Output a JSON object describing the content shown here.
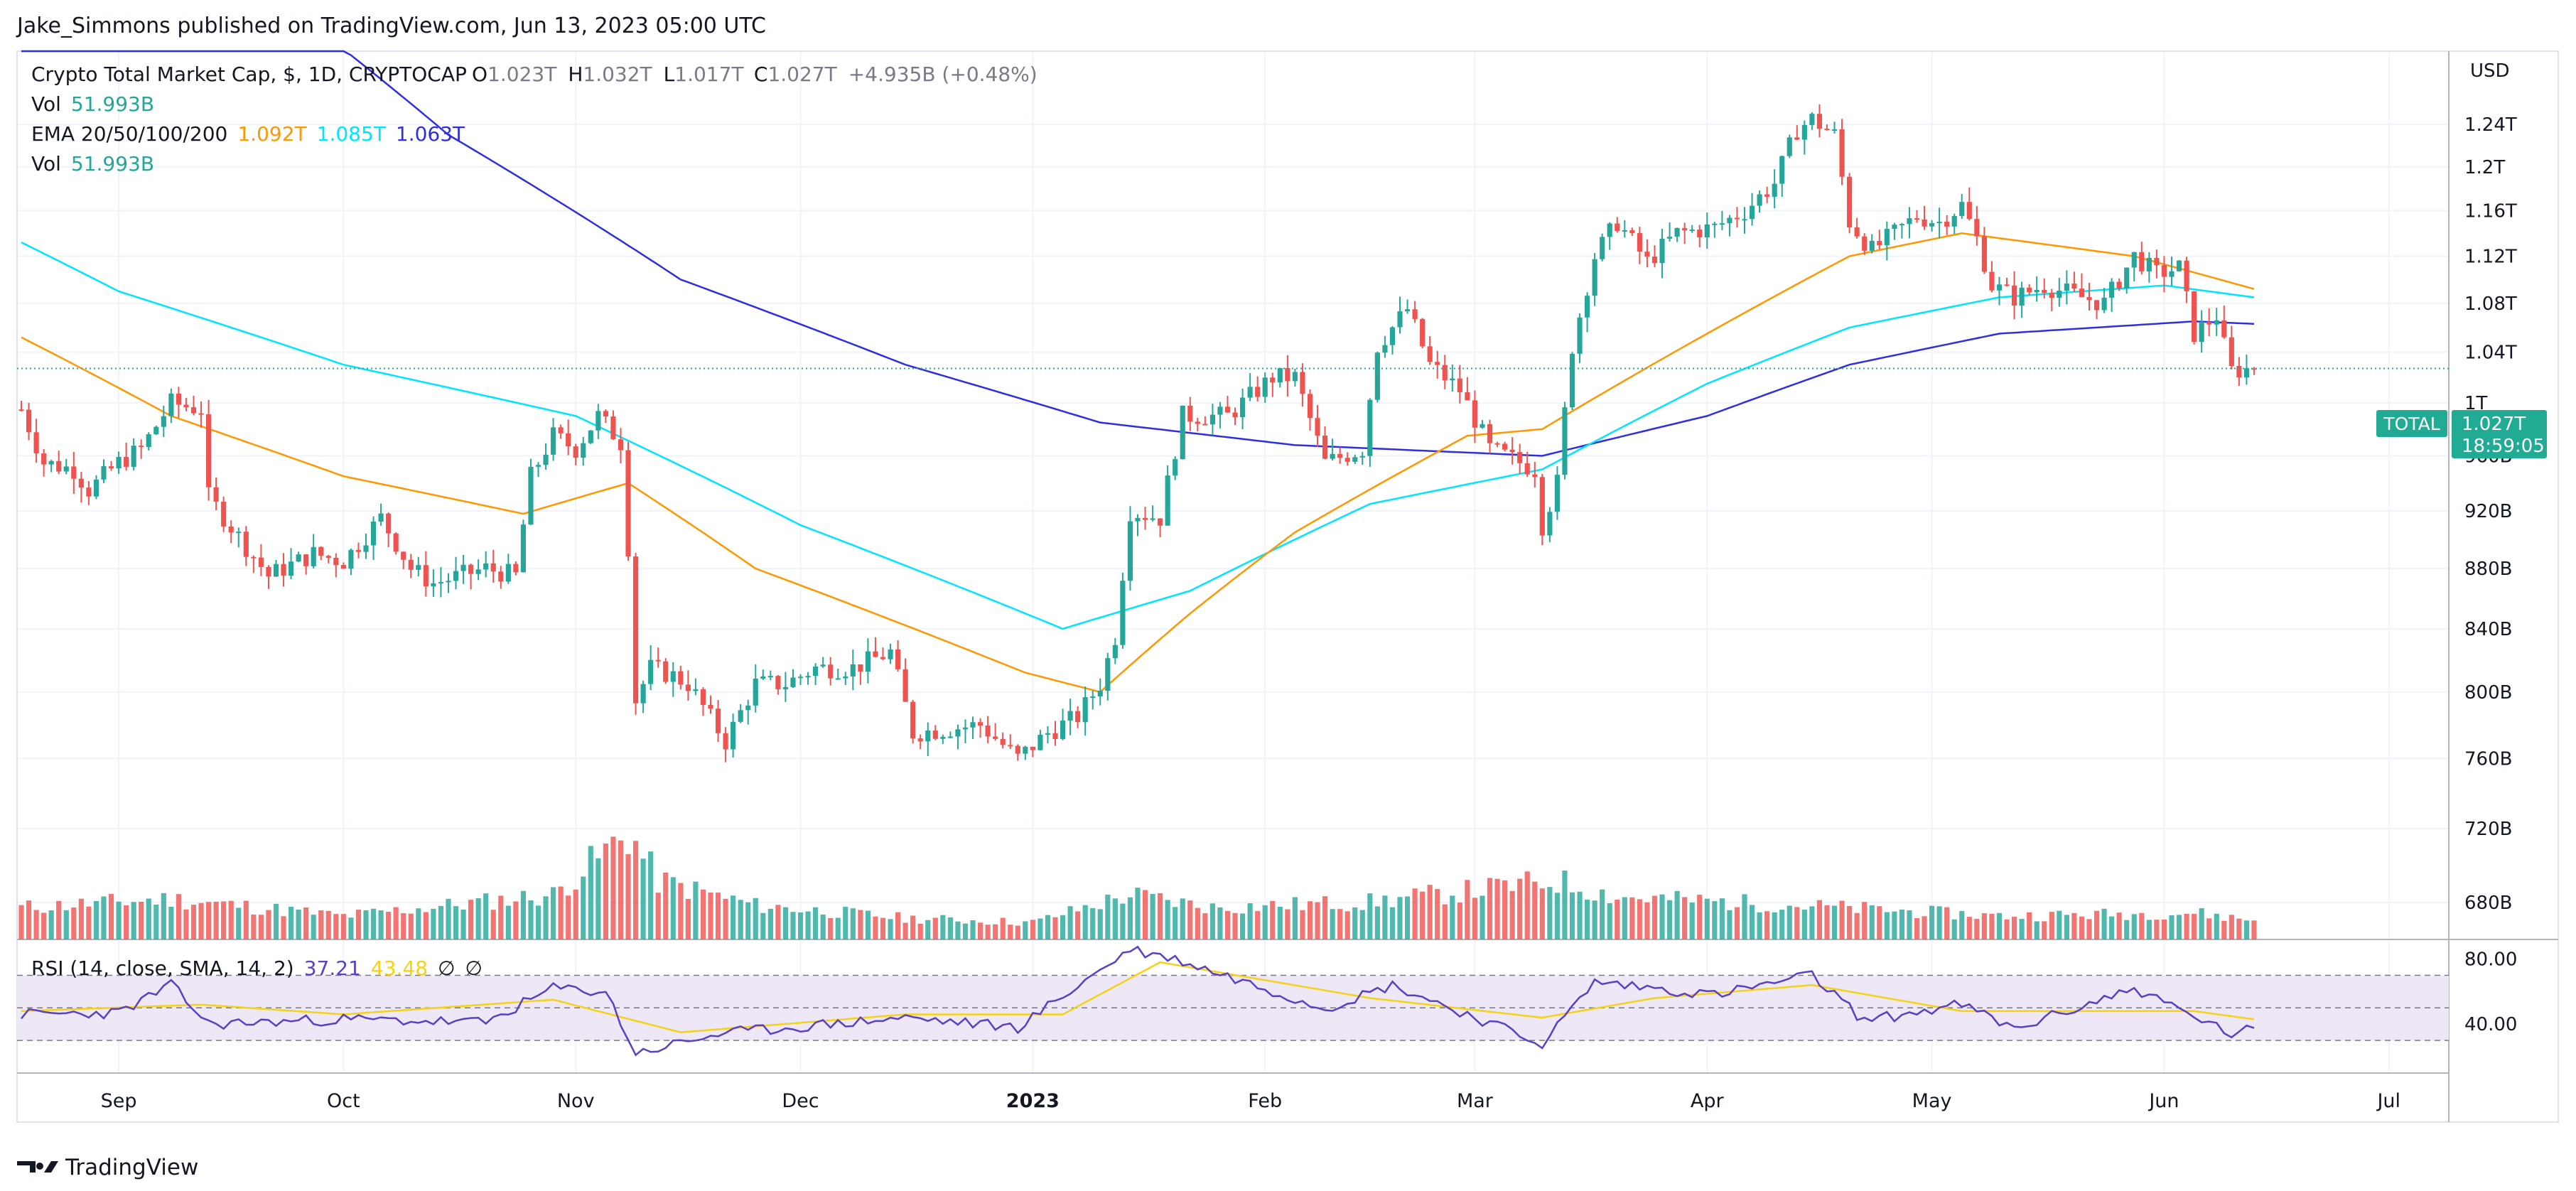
{
  "header": {
    "publisher": "Jake_Simmons published on TradingView.com, Jun 13, 2023 05:00 UTC"
  },
  "footer": {
    "logo_text": "TradingView"
  },
  "legend": {
    "symbol": "Crypto Total Market Cap, $, 1D, CRYPTOCAP",
    "ohlc": [
      {
        "label": "O",
        "value": "1.023T"
      },
      {
        "label": "H",
        "value": "1.032T"
      },
      {
        "label": "L",
        "value": "1.017T"
      },
      {
        "label": "C",
        "value": "1.027T"
      }
    ],
    "change": "+4.935B (+0.48%)",
    "vol_label": "Vol",
    "vol_value": "51.993B",
    "ema_label": "EMA 20/50/100/200",
    "ema_values": [
      "1.092T",
      "1.085T",
      "1.063T"
    ],
    "vol2_label": "Vol",
    "vol2_value": "51.993B",
    "rsi_label": "RSI (14, close, SMA, 14, 2)",
    "rsi_value": "37.21",
    "rsi_sma": "43.48",
    "rsi_na1": "∅",
    "rsi_na2": "∅"
  },
  "price_tag": {
    "symbol": "TOTAL",
    "value": "1.027T",
    "countdown": "18:59:05"
  },
  "colors": {
    "up": "#26a69a",
    "down": "#ef5350",
    "ema50": "#ff9800",
    "ema100": "#00e5ff",
    "ema200": "#2f2fe0",
    "rsi": "#5b3fc4",
    "rsi_sma": "#f5d215",
    "rsi_band": "#ede7f6",
    "tag_bg": "#22ab94"
  },
  "chart_data": [
    {
      "type": "candlestick",
      "title": "Crypto Total Market Cap, $, 1D, CRYPTOCAP",
      "ylabel": "USD",
      "y_scale": "log",
      "y_ticks": [
        "680B",
        "720B",
        "760B",
        "800B",
        "840B",
        "880B",
        "920B",
        "960B",
        "1T",
        "1.04T",
        "1.08T",
        "1.12T",
        "1.16T",
        "1.2T",
        "1.24T"
      ],
      "x_ticks": [
        "Sep",
        "Oct",
        "Nov",
        "Dec",
        "2023",
        "Feb",
        "Mar",
        "Apr",
        "May",
        "Jun",
        "Jul"
      ],
      "x_range": [
        "2022-08-19",
        "2023-07-07"
      ],
      "last_close": "1.027T",
      "grid": true,
      "anchors": [
        [
          "2022-08-19",
          995
        ],
        [
          "2022-08-22",
          955
        ],
        [
          "2022-08-26",
          950
        ],
        [
          "2022-08-28",
          935
        ],
        [
          "2022-09-01",
          955
        ],
        [
          "2022-09-04",
          965
        ],
        [
          "2022-09-08",
          1000
        ],
        [
          "2022-09-12",
          995
        ],
        [
          "2022-09-13",
          930
        ],
        [
          "2022-09-18",
          895
        ],
        [
          "2022-09-21",
          875
        ],
        [
          "2022-09-27",
          890
        ],
        [
          "2022-10-01",
          885
        ],
        [
          "2022-10-06",
          915
        ],
        [
          "2022-10-10",
          880
        ],
        [
          "2022-10-13",
          870
        ],
        [
          "2022-10-20",
          880
        ],
        [
          "2022-10-24",
          875
        ],
        [
          "2022-10-26",
          945
        ],
        [
          "2022-10-29",
          975
        ],
        [
          "2022-11-01",
          965
        ],
        [
          "2022-11-04",
          990
        ],
        [
          "2022-11-07",
          970
        ],
        [
          "2022-11-08",
          895
        ],
        [
          "2022-11-09",
          795
        ],
        [
          "2022-11-11",
          815
        ],
        [
          "2022-11-14",
          810
        ],
        [
          "2022-11-16",
          805
        ],
        [
          "2022-11-21",
          770
        ],
        [
          "2022-11-25",
          805
        ],
        [
          "2022-11-29",
          805
        ],
        [
          "2022-12-03",
          815
        ],
        [
          "2022-12-08",
          815
        ],
        [
          "2022-12-13",
          825
        ],
        [
          "2022-12-16",
          775
        ],
        [
          "2022-12-25",
          780
        ],
        [
          "2022-12-30",
          760
        ],
        [
          "2023-01-03",
          775
        ],
        [
          "2023-01-07",
          785
        ],
        [
          "2023-01-10",
          805
        ],
        [
          "2023-01-12",
          835
        ],
        [
          "2023-01-14",
          920
        ],
        [
          "2023-01-18",
          915
        ],
        [
          "2023-01-21",
          990
        ],
        [
          "2023-01-27",
          990
        ],
        [
          "2023-02-02",
          1020
        ],
        [
          "2023-02-05",
          1020
        ],
        [
          "2023-02-09",
          955
        ],
        [
          "2023-02-14",
          965
        ],
        [
          "2023-02-16",
          1045
        ],
        [
          "2023-02-20",
          1075
        ],
        [
          "2023-02-23",
          1030
        ],
        [
          "2023-02-27",
          1010
        ],
        [
          "2023-03-03",
          965
        ],
        [
          "2023-03-09",
          950
        ],
        [
          "2023-03-10",
          910
        ],
        [
          "2023-03-12",
          940
        ],
        [
          "2023-03-14",
          1045
        ],
        [
          "2023-03-17",
          1120
        ],
        [
          "2023-03-20",
          1150
        ],
        [
          "2023-03-24",
          1115
        ],
        [
          "2023-03-28",
          1140
        ],
        [
          "2023-04-02",
          1145
        ],
        [
          "2023-04-06",
          1160
        ],
        [
          "2023-04-10",
          1185
        ],
        [
          "2023-04-13",
          1235
        ],
        [
          "2023-04-15",
          1245
        ],
        [
          "2023-04-18",
          1230
        ],
        [
          "2023-04-20",
          1150
        ],
        [
          "2023-04-23",
          1125
        ],
        [
          "2023-04-26",
          1140
        ],
        [
          "2023-04-29",
          1155
        ],
        [
          "2023-05-02",
          1150
        ],
        [
          "2023-05-05",
          1165
        ],
        [
          "2023-05-07",
          1135
        ],
        [
          "2023-05-09",
          1095
        ],
        [
          "2023-05-12",
          1085
        ],
        [
          "2023-05-16",
          1095
        ],
        [
          "2023-05-21",
          1085
        ],
        [
          "2023-05-24",
          1080
        ],
        [
          "2023-05-28",
          1120
        ],
        [
          "2023-05-31",
          1105
        ],
        [
          "2023-06-03",
          1110
        ],
        [
          "2023-06-05",
          1055
        ],
        [
          "2023-06-08",
          1070
        ],
        [
          "2023-06-09",
          1045
        ],
        [
          "2023-06-10",
          1025
        ],
        [
          "2023-06-13",
          1027
        ]
      ],
      "ema50": [
        [
          "2022-08-19",
          1052
        ],
        [
          "2022-09-08",
          990
        ],
        [
          "2022-10-01",
          945
        ],
        [
          "2022-10-25",
          918
        ],
        [
          "2022-11-08",
          940
        ],
        [
          "2022-11-25",
          880
        ],
        [
          "2022-12-31",
          812
        ],
        [
          "2023-01-10",
          800
        ],
        [
          "2023-01-22",
          850
        ],
        [
          "2023-02-05",
          905
        ],
        [
          "2023-02-28",
          975
        ],
        [
          "2023-03-10",
          980
        ],
        [
          "2023-04-01",
          1055
        ],
        [
          "2023-04-20",
          1120
        ],
        [
          "2023-05-05",
          1140
        ],
        [
          "2023-05-28",
          1120
        ],
        [
          "2023-06-13",
          1092
        ]
      ],
      "ema100": [
        [
          "2022-08-19",
          1132
        ],
        [
          "2022-09-01",
          1090
        ],
        [
          "2022-10-01",
          1030
        ],
        [
          "2022-11-01",
          990
        ],
        [
          "2022-12-01",
          910
        ],
        [
          "2023-01-05",
          840
        ],
        [
          "2023-01-22",
          865
        ],
        [
          "2023-02-15",
          925
        ],
        [
          "2023-03-10",
          950
        ],
        [
          "2023-04-01",
          1015
        ],
        [
          "2023-04-20",
          1060
        ],
        [
          "2023-05-10",
          1085
        ],
        [
          "2023-06-01",
          1095
        ],
        [
          "2023-06-13",
          1085
        ]
      ],
      "ema200": [
        [
          "2022-08-19",
          1750
        ],
        [
          "2022-09-15",
          1410
        ],
        [
          "2022-10-15",
          1230
        ],
        [
          "2022-11-15",
          1100
        ],
        [
          "2022-12-15",
          1030
        ],
        [
          "2023-01-10",
          985
        ],
        [
          "2023-02-05",
          968
        ],
        [
          "2023-03-10",
          960
        ],
        [
          "2023-04-01",
          990
        ],
        [
          "2023-04-20",
          1030
        ],
        [
          "2023-05-10",
          1055
        ],
        [
          "2023-06-05",
          1065
        ],
        [
          "2023-06-13",
          1063
        ]
      ]
    },
    {
      "type": "bar",
      "title": "Vol",
      "last_value": "51.993B",
      "unit": "relative",
      "levels": [
        [
          "2022-08-19",
          0.3
        ],
        [
          "2022-09-08",
          0.38
        ],
        [
          "2022-10-01",
          0.22
        ],
        [
          "2022-10-29",
          0.42
        ],
        [
          "2022-11-08",
          1.0
        ],
        [
          "2022-11-12",
          0.55
        ],
        [
          "2022-11-25",
          0.32
        ],
        [
          "2022-12-15",
          0.2
        ],
        [
          "2023-01-01",
          0.16
        ],
        [
          "2023-01-14",
          0.42
        ],
        [
          "2023-01-25",
          0.3
        ],
        [
          "2023-02-15",
          0.35
        ],
        [
          "2023-03-12",
          0.55
        ],
        [
          "2023-03-20",
          0.4
        ],
        [
          "2023-04-13",
          0.32
        ],
        [
          "2023-05-10",
          0.22
        ],
        [
          "2023-06-05",
          0.25
        ],
        [
          "2023-06-13",
          0.18
        ]
      ]
    },
    {
      "type": "line",
      "title": "RSI (14, close, SMA, 14, 2)",
      "last_value": "37.21",
      "sma_value": "43.48",
      "y_ticks": [
        "40.00",
        "80.00"
      ],
      "bands": [
        30,
        50,
        70
      ],
      "rsi": [
        [
          "2022-08-19",
          46
        ],
        [
          "2022-09-01",
          47
        ],
        [
          "2022-09-08",
          64
        ],
        [
          "2022-09-13",
          40
        ],
        [
          "2022-10-01",
          43
        ],
        [
          "2022-10-20",
          41
        ],
        [
          "2022-10-29",
          62
        ],
        [
          "2022-11-05",
          60
        ],
        [
          "2022-11-09",
          22
        ],
        [
          "2022-11-20",
          34
        ],
        [
          "2022-12-15",
          44
        ],
        [
          "2022-12-30",
          38
        ],
        [
          "2023-01-14",
          86
        ],
        [
          "2023-01-20",
          80
        ],
        [
          "2023-02-09",
          50
        ],
        [
          "2023-02-18",
          64
        ],
        [
          "2023-03-10",
          28
        ],
        [
          "2023-03-17",
          66
        ],
        [
          "2023-04-02",
          58
        ],
        [
          "2023-04-15",
          70
        ],
        [
          "2023-04-22",
          42
        ],
        [
          "2023-05-05",
          52
        ],
        [
          "2023-05-12",
          37
        ],
        [
          "2023-05-28",
          62
        ],
        [
          "2023-06-10",
          34
        ],
        [
          "2023-06-13",
          37
        ]
      ],
      "rsi_sma": [
        [
          "2022-08-19",
          48
        ],
        [
          "2022-09-12",
          52
        ],
        [
          "2022-10-01",
          46
        ],
        [
          "2022-10-29",
          55
        ],
        [
          "2022-11-15",
          35
        ],
        [
          "2022-12-15",
          46
        ],
        [
          "2023-01-05",
          46
        ],
        [
          "2023-01-18",
          78
        ],
        [
          "2023-02-15",
          56
        ],
        [
          "2023-03-10",
          44
        ],
        [
          "2023-03-25",
          56
        ],
        [
          "2023-04-15",
          64
        ],
        [
          "2023-05-05",
          48
        ],
        [
          "2023-06-05",
          48
        ],
        [
          "2023-06-13",
          43
        ]
      ]
    }
  ]
}
